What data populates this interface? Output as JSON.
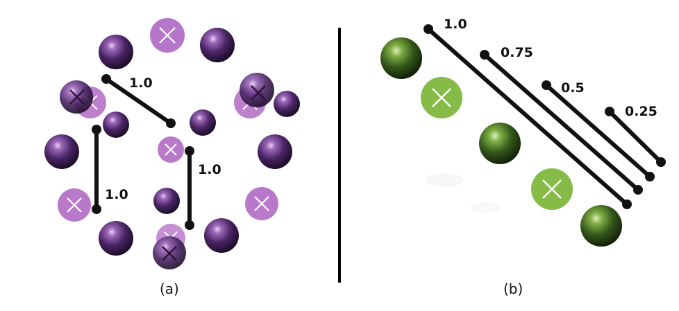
{
  "panels": [
    {
      "id": "a",
      "caption": "(a)",
      "theme_color": "#a25bb8",
      "segment_labels": [
        "1.0",
        "1.0",
        "1.0"
      ]
    },
    {
      "id": "b",
      "caption": "(b)",
      "theme_color": "#7fb33c",
      "segment_labels": [
        "1.0",
        "0.75",
        "0.5",
        "0.25"
      ]
    }
  ],
  "colors": {
    "purple_sphere": "#5a2a78",
    "purple_vacancy": "#b06ac4",
    "green_sphere": "#3f6a1a",
    "green_vacancy": "#86bb48",
    "segment": "#111111",
    "divider": "#000000"
  },
  "icons": {
    "sphere": "sphere-icon",
    "vacancy": "vacancy-x-icon",
    "endpoint": "dot-icon"
  }
}
